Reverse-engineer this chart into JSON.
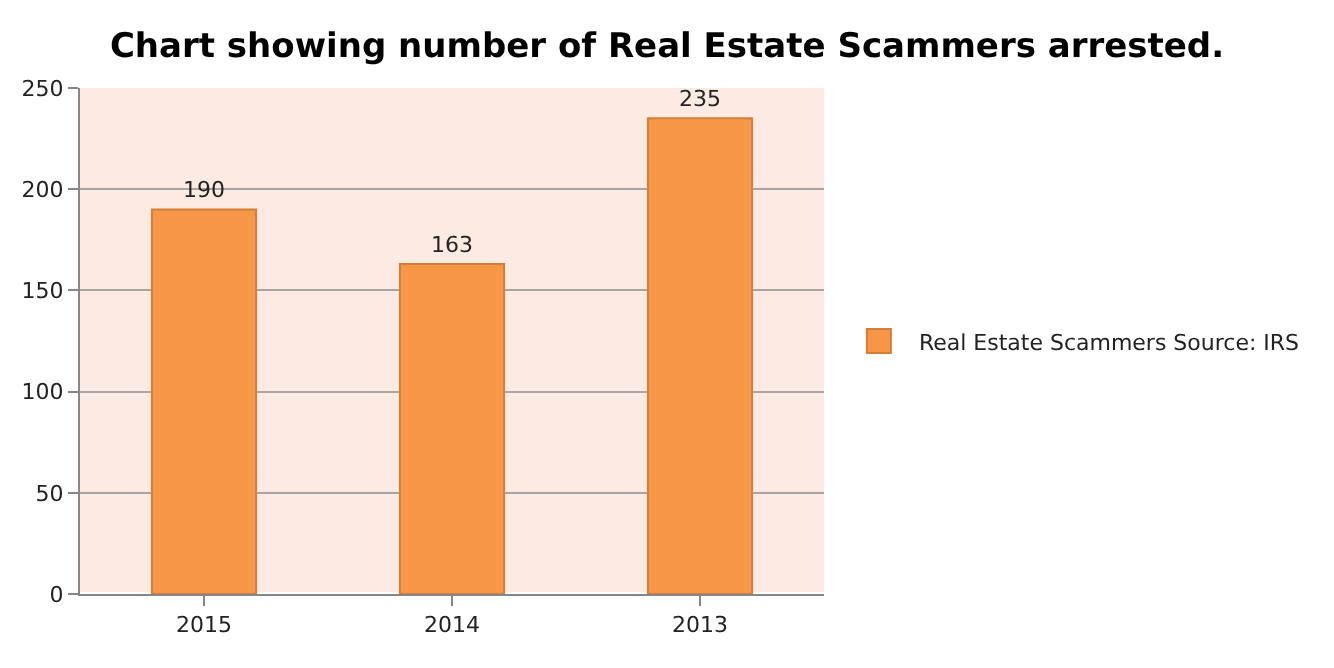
{
  "chart_data": {
    "type": "bar",
    "title": "Chart showing number of Real Estate Scammers arrested.",
    "categories": [
      "2015",
      "2014",
      "2013"
    ],
    "series": [
      {
        "name": "Real Estate Scammers Source: IRS",
        "color": "#f79646",
        "values": [
          190,
          163,
          235
        ]
      }
    ],
    "ylim": [
      0,
      250
    ],
    "yticks": [
      0,
      50,
      100,
      150,
      200,
      250
    ],
    "grid": "y",
    "legend": "right",
    "data_labels": true
  }
}
